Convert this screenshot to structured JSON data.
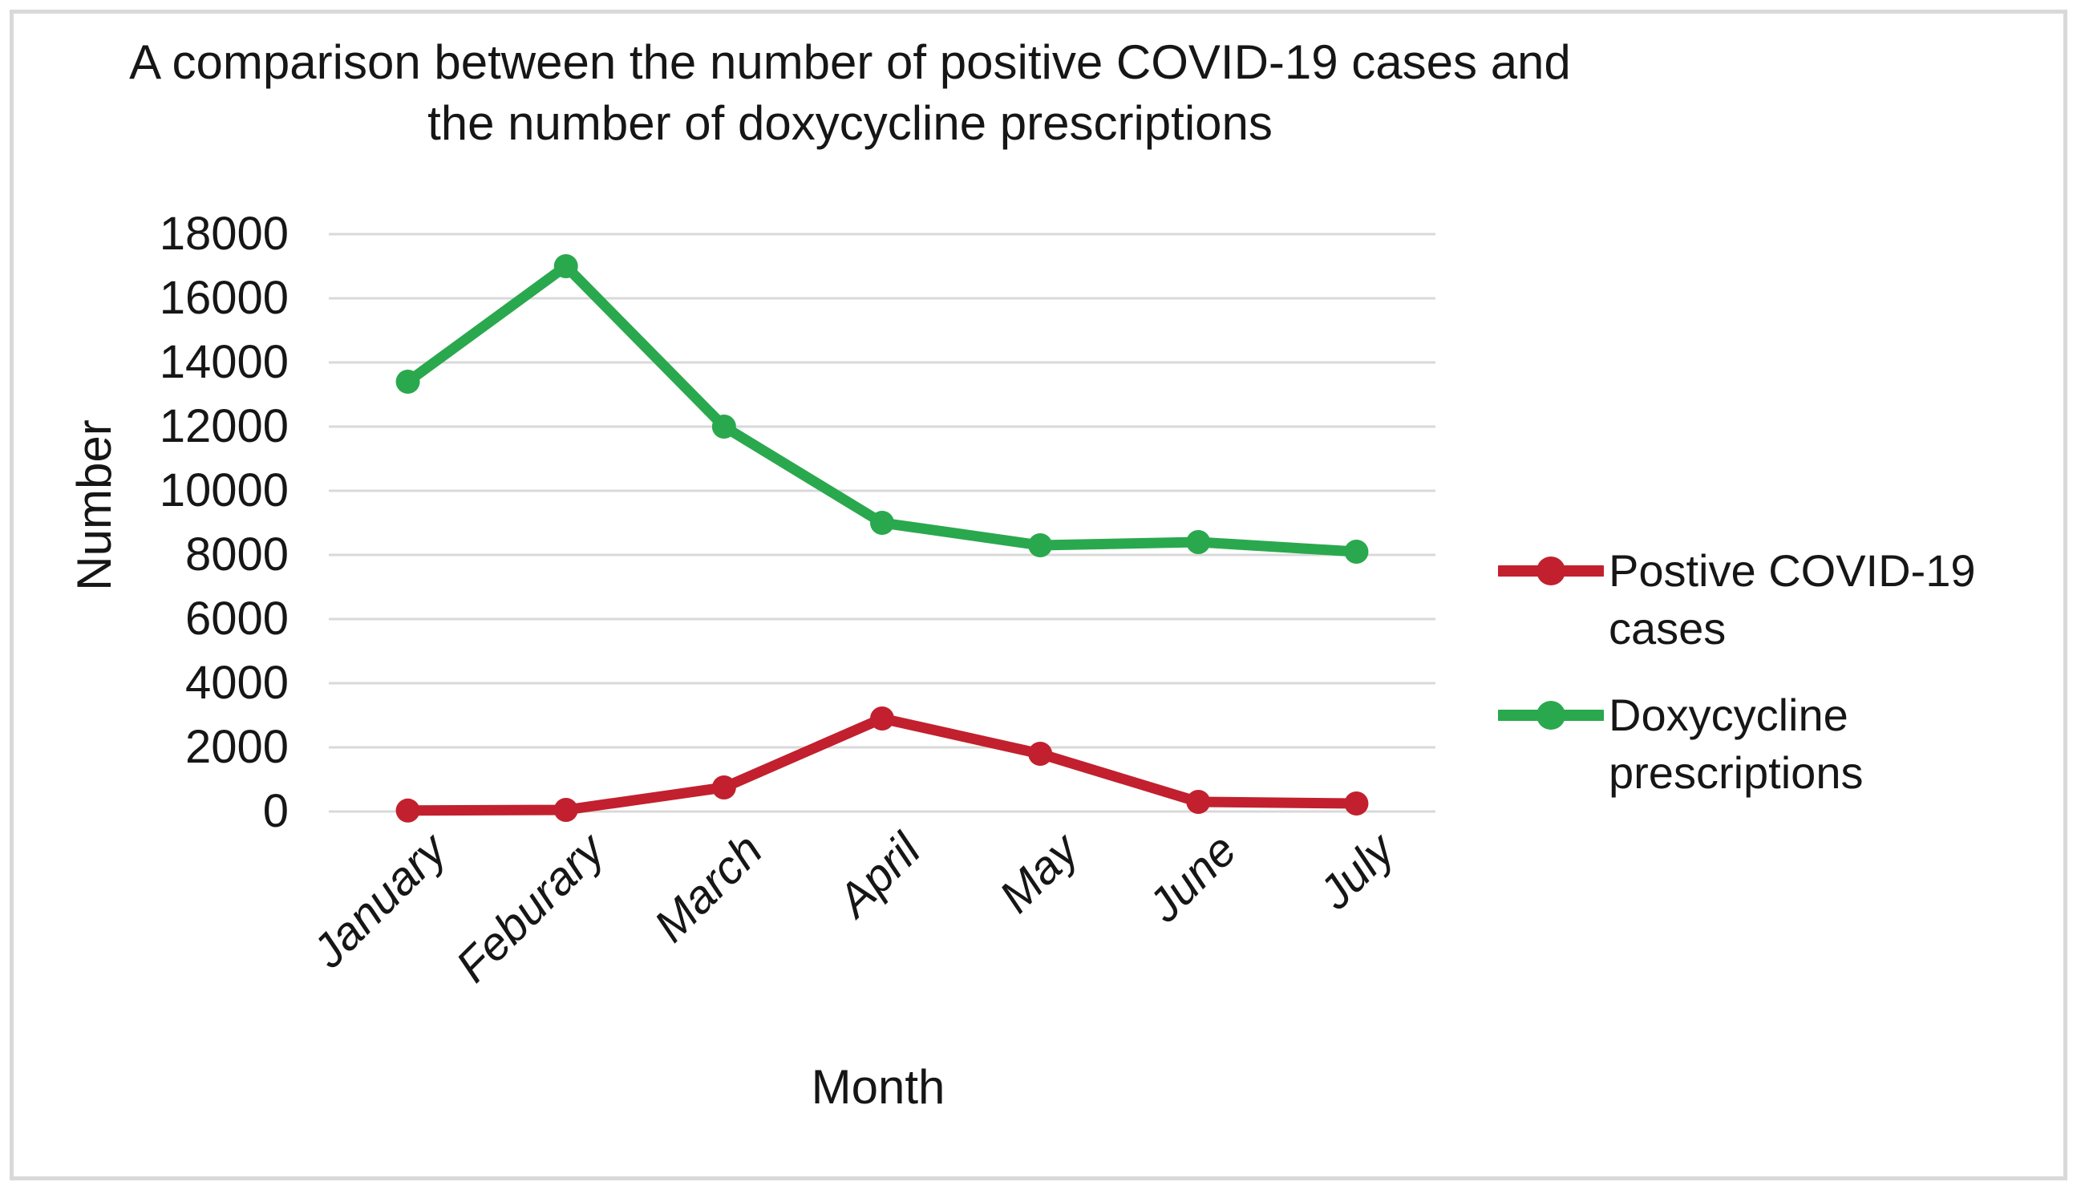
{
  "figure": {
    "title_lines": [
      "A comparison between the number of positive COVID-19 cases and",
      "the number of doxycycline prescriptions"
    ],
    "y_axis_title": "Number",
    "x_axis_title": "Month",
    "background_color": "#ffffff",
    "border_color": "#d9d9d9",
    "gridline_color": "#d9d9d9",
    "text_color": "#161616"
  },
  "chart_data": {
    "type": "line",
    "title": "A comparison between the number of positive COVID-19 cases and the number of doxycycline prescriptions",
    "categories": [
      "January",
      "Feburary",
      "March",
      "April",
      "May",
      "June",
      "July"
    ],
    "series": [
      {
        "name": "Postive COVID-19 cases",
        "color": "#c2202e",
        "values": [
          30,
          50,
          750,
          2900,
          1800,
          300,
          250
        ]
      },
      {
        "name": "Doxycycline prescriptions",
        "color": "#2aa84e",
        "values": [
          13400,
          17000,
          12000,
          9000,
          8300,
          8400,
          8100
        ]
      }
    ],
    "xlabel": "Month",
    "ylabel": "Number",
    "ylim": [
      0,
      18000
    ],
    "y_ticks": [
      0,
      2000,
      4000,
      6000,
      8000,
      10000,
      12000,
      14000,
      16000,
      18000
    ],
    "grid": "horizontal",
    "legend_position": "right",
    "marker": "circle"
  }
}
